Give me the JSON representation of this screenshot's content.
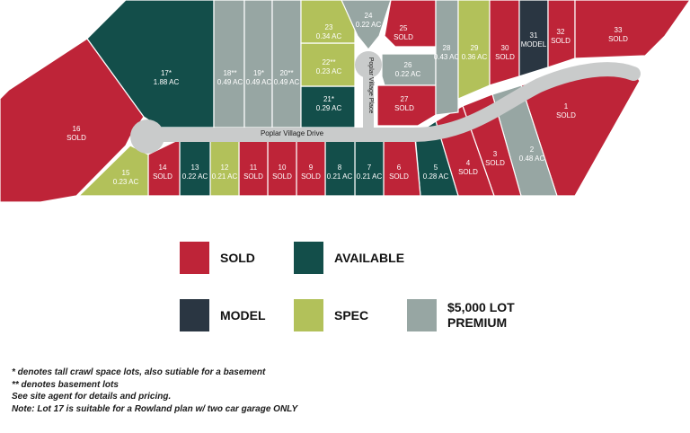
{
  "colors": {
    "sold": "#BE2438",
    "available": "#134E4A",
    "model": "#2A3642",
    "spec": "#B2C15A",
    "premium": "#97A6A3",
    "road": "#C9CBCB"
  },
  "street_labels": {
    "drive": "Poplar Village Drive",
    "place": "Poplar Village Place"
  },
  "lots": [
    {
      "id": "1",
      "status": "sold",
      "line1": "1",
      "line2": "SOLD"
    },
    {
      "id": "2",
      "status": "premium",
      "line1": "2",
      "line2": "0.48 AC"
    },
    {
      "id": "3",
      "status": "sold",
      "line1": "3",
      "line2": "SOLD"
    },
    {
      "id": "4",
      "status": "sold",
      "line1": "4",
      "line2": "SOLD"
    },
    {
      "id": "5",
      "status": "available",
      "line1": "5",
      "line2": "0.28 AC"
    },
    {
      "id": "6",
      "status": "sold",
      "line1": "6",
      "line2": "SOLD"
    },
    {
      "id": "7",
      "status": "available",
      "line1": "7",
      "line2": "0.21 AC"
    },
    {
      "id": "8",
      "status": "available",
      "line1": "8",
      "line2": "0.21 AC"
    },
    {
      "id": "9",
      "status": "sold",
      "line1": "9",
      "line2": "SOLD"
    },
    {
      "id": "10",
      "status": "sold",
      "line1": "10",
      "line2": "SOLD"
    },
    {
      "id": "11",
      "status": "sold",
      "line1": "11",
      "line2": "SOLD"
    },
    {
      "id": "12",
      "status": "spec",
      "line1": "12",
      "line2": "0.21 AC"
    },
    {
      "id": "13",
      "status": "available",
      "line1": "13",
      "line2": "0.22 AC"
    },
    {
      "id": "14",
      "status": "sold",
      "line1": "14",
      "line2": "SOLD"
    },
    {
      "id": "15",
      "status": "spec",
      "line1": "15",
      "line2": "0.23 AC"
    },
    {
      "id": "16",
      "status": "sold",
      "line1": "16",
      "line2": "SOLD"
    },
    {
      "id": "17",
      "status": "available",
      "line1": "17*",
      "line2": "1.88 AC"
    },
    {
      "id": "18",
      "status": "premium",
      "line1": "18**",
      "line2": "0.49 AC"
    },
    {
      "id": "19",
      "status": "premium",
      "line1": "19*",
      "line2": "0.49 AC"
    },
    {
      "id": "20",
      "status": "premium",
      "line1": "20**",
      "line2": "0.49 AC"
    },
    {
      "id": "21",
      "status": "available",
      "line1": "21*",
      "line2": "0.29 AC"
    },
    {
      "id": "22",
      "status": "spec",
      "line1": "22**",
      "line2": "0.23 AC"
    },
    {
      "id": "23",
      "status": "spec",
      "line1": "23",
      "line2": "0.34 AC"
    },
    {
      "id": "24",
      "status": "premium",
      "line1": "24",
      "line2": "0.22 AC"
    },
    {
      "id": "25",
      "status": "sold",
      "line1": "25",
      "line2": "SOLD"
    },
    {
      "id": "26",
      "status": "premium",
      "line1": "26",
      "line2": "0.22 AC"
    },
    {
      "id": "27",
      "status": "sold",
      "line1": "27",
      "line2": "SOLD"
    },
    {
      "id": "28",
      "status": "premium",
      "line1": "28",
      "line2": "0.43 AC"
    },
    {
      "id": "29",
      "status": "spec",
      "line1": "29",
      "line2": "0.36 AC"
    },
    {
      "id": "30",
      "status": "sold",
      "line1": "30",
      "line2": "SOLD"
    },
    {
      "id": "31",
      "status": "model",
      "line1": "31",
      "line2": "MODEL"
    },
    {
      "id": "32",
      "status": "sold",
      "line1": "32",
      "line2": "SOLD"
    },
    {
      "id": "33",
      "status": "sold",
      "line1": "33",
      "line2": "SOLD"
    }
  ],
  "legend": {
    "sold": "SOLD",
    "available": "AVAILABLE",
    "model": "MODEL",
    "spec": "SPEC",
    "premium_line1": "$5,000 LOT",
    "premium_line2": "PREMIUM"
  },
  "notes": {
    "line1": "* denotes tall crawl space lots, also sutiable for a basement",
    "line2": "** denotes basement lots",
    "line3": "See site agent for details and pricing.",
    "line4": "Note: Lot 17 is suitable for a Rowland plan w/ two car garage ONLY"
  }
}
